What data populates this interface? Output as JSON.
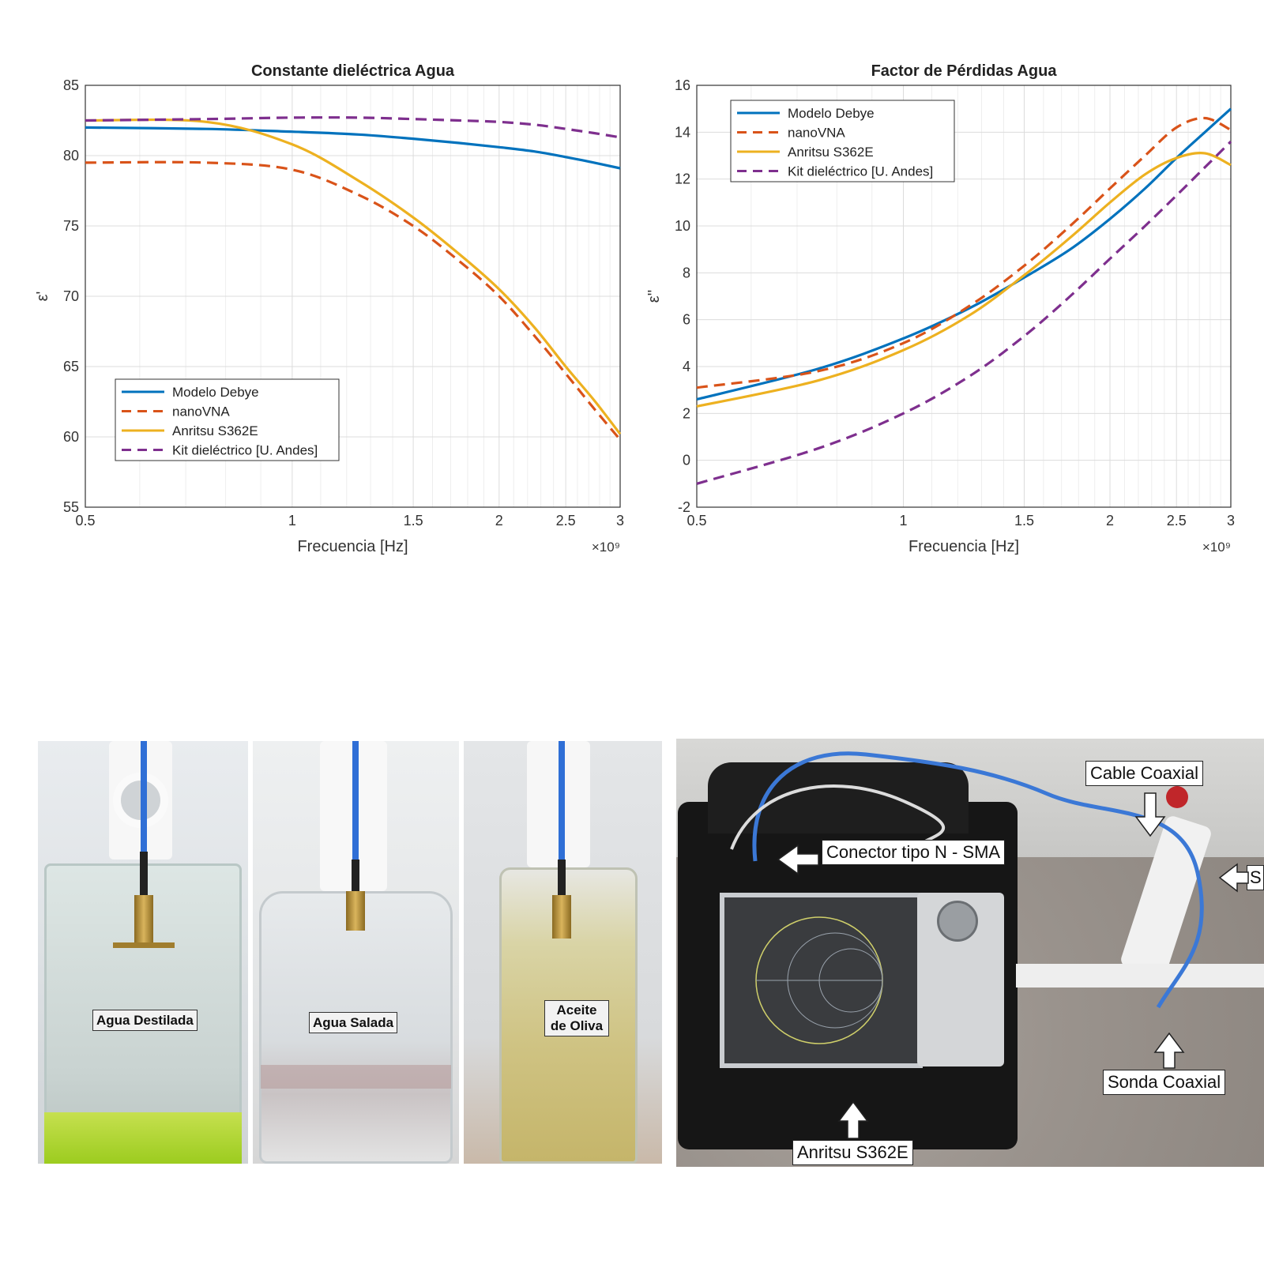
{
  "chart_data": [
    {
      "type": "line",
      "title": "Constante dieléctrica Agua",
      "xlabel": "Frecuencia [Hz]",
      "ylabel": "ε'",
      "x_multiplier": "×10⁹",
      "xlim": [
        0.5,
        3
      ],
      "ylim": [
        55,
        85
      ],
      "x_scale": "log",
      "grid": true,
      "legend_position": "lower-left",
      "x_ticks": [
        "0.5",
        "1",
        "1.5",
        "2",
        "2.5",
        "3"
      ],
      "y_ticks": [
        "55",
        "60",
        "65",
        "70",
        "75",
        "80",
        "85"
      ],
      "x": [
        0.5,
        0.75,
        1.0,
        1.25,
        1.5,
        1.75,
        2.0,
        2.25,
        2.5,
        2.75,
        3.0
      ],
      "series": [
        {
          "name": "Modelo Debye",
          "color": "#0072BD",
          "style": "solid",
          "values": [
            82.0,
            81.9,
            81.7,
            81.5,
            81.2,
            80.9,
            80.6,
            80.3,
            79.9,
            79.5,
            79.1
          ]
        },
        {
          "name": "nanoVNA",
          "color": "#D95319",
          "style": "dashed",
          "values": [
            79.5,
            79.5,
            79.0,
            77.2,
            75.0,
            72.5,
            70.0,
            67.2,
            64.5,
            62.0,
            59.8
          ]
        },
        {
          "name": "Anritsu S362E",
          "color": "#EDB120",
          "style": "solid",
          "values": [
            82.5,
            82.4,
            80.8,
            78.2,
            75.6,
            73.0,
            70.5,
            67.8,
            65.0,
            62.6,
            60.2
          ]
        },
        {
          "name": "Kit dieléctrico [U. Andes]",
          "color": "#7E2F8E",
          "style": "dashed",
          "values": [
            82.5,
            82.6,
            82.7,
            82.7,
            82.6,
            82.5,
            82.4,
            82.2,
            81.9,
            81.6,
            81.3
          ]
        }
      ]
    },
    {
      "type": "line",
      "title": "Factor de Pérdidas Agua",
      "xlabel": "Frecuencia [Hz]",
      "ylabel": "ε''",
      "x_multiplier": "×10⁹",
      "xlim": [
        0.5,
        3
      ],
      "ylim": [
        -2,
        16
      ],
      "x_scale": "log",
      "grid": true,
      "legend_position": "top-left",
      "x_ticks": [
        "0.5",
        "1",
        "1.5",
        "2",
        "2.5",
        "3"
      ],
      "y_ticks": [
        "-2",
        "0",
        "2",
        "4",
        "6",
        "8",
        "10",
        "12",
        "14",
        "16"
      ],
      "x": [
        0.5,
        0.75,
        1.0,
        1.25,
        1.5,
        1.75,
        2.0,
        2.25,
        2.5,
        2.75,
        3.0
      ],
      "series": [
        {
          "name": "Modelo Debye",
          "color": "#0072BD",
          "style": "solid",
          "values": [
            2.6,
            3.9,
            5.2,
            6.5,
            7.8,
            9.0,
            10.3,
            11.6,
            12.9,
            14.0,
            15.0
          ]
        },
        {
          "name": "nanoVNA",
          "color": "#D95319",
          "style": "dashed",
          "values": [
            3.1,
            3.8,
            5.0,
            6.6,
            8.3,
            10.0,
            11.6,
            13.0,
            14.2,
            14.6,
            14.1
          ]
        },
        {
          "name": "Anritsu S362E",
          "color": "#EDB120",
          "style": "solid",
          "values": [
            2.3,
            3.4,
            4.7,
            6.2,
            7.9,
            9.5,
            11.0,
            12.2,
            12.9,
            13.1,
            12.6
          ]
        },
        {
          "name": "Kit dieléctrico [U. Andes]",
          "color": "#7E2F8E",
          "style": "dashed",
          "values": [
            -1.0,
            0.5,
            2.0,
            3.6,
            5.3,
            7.0,
            8.6,
            10.0,
            11.3,
            12.5,
            13.6
          ]
        }
      ]
    }
  ],
  "photos": {
    "samples": [
      "Agua Destilada",
      "Agua Salada",
      "Aceite de Oliva"
    ],
    "setup_labels": {
      "connector": "Conector tipo N - SMA",
      "cable": "Cable Coaxial",
      "probe": "Sonda Coaxial",
      "analyzer": "Anritsu S362E",
      "cut": "S"
    }
  }
}
